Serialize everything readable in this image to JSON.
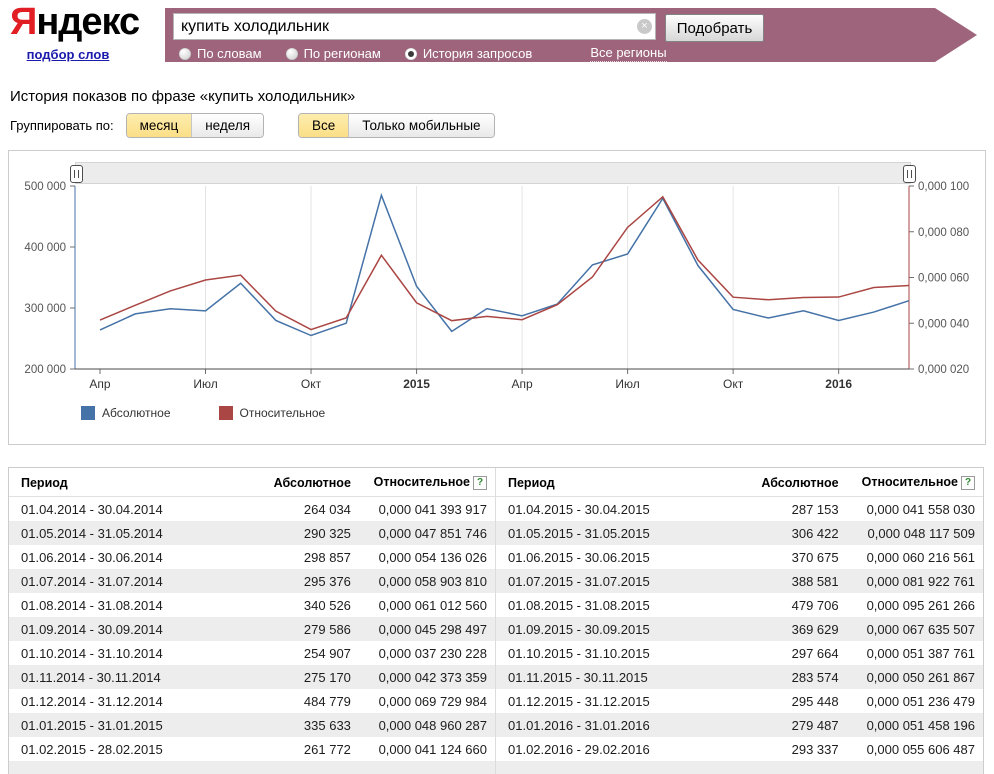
{
  "header": {
    "logo_first": "Я",
    "logo_rest": "ндекс",
    "logo_link": "подбор слов",
    "search_value": "купить холодильник",
    "submit_label": "Подобрать",
    "modes": [
      {
        "label": "По словам",
        "selected": false
      },
      {
        "label": "По регионам",
        "selected": false
      },
      {
        "label": "История запросов",
        "selected": true
      }
    ],
    "regions_link": "Все регионы"
  },
  "icons": {
    "clear": "×",
    "help": "?"
  },
  "page_title": "История показов по фразе «купить холодильник»",
  "controls": {
    "group_label": "Группировать по:",
    "grouping": [
      {
        "label": "месяц",
        "active": true
      },
      {
        "label": "неделя",
        "active": false
      }
    ],
    "device": [
      {
        "label": "Все",
        "active": true
      },
      {
        "label": "Только мобильные",
        "active": false
      }
    ]
  },
  "chart_data": {
    "type": "line",
    "categories": [
      "04.2014",
      "05.2014",
      "06.2014",
      "07.2014",
      "08.2014",
      "09.2014",
      "10.2014",
      "11.2014",
      "12.2014",
      "01.2015",
      "02.2015",
      "03.2015",
      "04.2015",
      "05.2015",
      "06.2015",
      "07.2015",
      "08.2015",
      "09.2015",
      "10.2015",
      "11.2015",
      "12.2015",
      "01.2016",
      "02.2016",
      "03.2016"
    ],
    "x_ticks": [
      {
        "label": "Апр",
        "month": 0,
        "bold": false
      },
      {
        "label": "Июл",
        "month": 3,
        "bold": false
      },
      {
        "label": "Окт",
        "month": 6,
        "bold": false
      },
      {
        "label": "2015",
        "month": 9,
        "bold": true
      },
      {
        "label": "Апр",
        "month": 12,
        "bold": false
      },
      {
        "label": "Июл",
        "month": 15,
        "bold": false
      },
      {
        "label": "Окт",
        "month": 18,
        "bold": false
      },
      {
        "label": "2016",
        "month": 21,
        "bold": true
      }
    ],
    "series": [
      {
        "name": "Абсолютное",
        "color": "#4572A7",
        "axis": "left",
        "values": [
          264034,
          290325,
          298857,
          295376,
          340526,
          279586,
          254907,
          275170,
          484779,
          335633,
          261772,
          299000,
          287153,
          306422,
          370675,
          388581,
          479706,
          369629,
          297664,
          283574,
          295448,
          279487,
          293337,
          312000
        ]
      },
      {
        "name": "Относительное",
        "color": "#AA4643",
        "axis": "right",
        "values": [
          41.393917,
          47.851746,
          54.136026,
          58.90381,
          61.01256,
          45.298497,
          37.230228,
          42.373359,
          69.729984,
          48.960287,
          41.12466,
          43.0,
          41.55803,
          48.117509,
          60.216561,
          81.922761,
          95.261266,
          67.635507,
          51.387761,
          50.261867,
          51.236479,
          51.458196,
          55.606487,
          56.5
        ]
      }
    ],
    "left_axis": {
      "ticks": [
        "500 000",
        "400 000",
        "300 000",
        "200 000"
      ],
      "range": [
        200000,
        500000
      ]
    },
    "right_axis": {
      "ticks": [
        "0,000 100",
        "0,000 080",
        "0,000 060",
        "0,000 040",
        "0,000 020"
      ],
      "range": [
        20,
        100
      ],
      "unit": "millionths"
    },
    "legend": [
      "Абсолютное",
      "Относительное"
    ],
    "grid": "vertical",
    "legend_position": "bottom-left"
  },
  "tables": {
    "headers": [
      "Период",
      "Абсолютное",
      "Относительное"
    ],
    "left_rows": [
      [
        "01.04.2014 - 30.04.2014",
        "264 034",
        "0,000 041 393 917"
      ],
      [
        "01.05.2014 - 31.05.2014",
        "290 325",
        "0,000 047 851 746"
      ],
      [
        "01.06.2014 - 30.06.2014",
        "298 857",
        "0,000 054 136 026"
      ],
      [
        "01.07.2014 - 31.07.2014",
        "295 376",
        "0,000 058 903 810"
      ],
      [
        "01.08.2014 - 31.08.2014",
        "340 526",
        "0,000 061 012 560"
      ],
      [
        "01.09.2014 - 30.09.2014",
        "279 586",
        "0,000 045 298 497"
      ],
      [
        "01.10.2014 - 31.10.2014",
        "254 907",
        "0,000 037 230 228"
      ],
      [
        "01.11.2014 - 30.11.2014",
        "275 170",
        "0,000 042 373 359"
      ],
      [
        "01.12.2014 - 31.12.2014",
        "484 779",
        "0,000 069 729 984"
      ],
      [
        "01.01.2015 - 31.01.2015",
        "335 633",
        "0,000 048 960 287"
      ],
      [
        "01.02.2015 - 28.02.2015",
        "261 772",
        "0,000 041 124 660"
      ]
    ],
    "right_rows": [
      [
        "01.04.2015 - 30.04.2015",
        "287 153",
        "0,000 041 558 030"
      ],
      [
        "01.05.2015 - 31.05.2015",
        "306 422",
        "0,000 048 117 509"
      ],
      [
        "01.06.2015 - 30.06.2015",
        "370 675",
        "0,000 060 216 561"
      ],
      [
        "01.07.2015 - 31.07.2015",
        "388 581",
        "0,000 081 922 761"
      ],
      [
        "01.08.2015 - 31.08.2015",
        "479 706",
        "0,000 095 261 266"
      ],
      [
        "01.09.2015 - 30.09.2015",
        "369 629",
        "0,000 067 635 507"
      ],
      [
        "01.10.2015 - 31.10.2015",
        "297 664",
        "0,000 051 387 761"
      ],
      [
        "01.11.2015 - 30.11.2015",
        "283 574",
        "0,000 050 261 867"
      ],
      [
        "01.12.2015 - 31.12.2015",
        "295 448",
        "0,000 051 236 479"
      ],
      [
        "01.01.2016 - 31.01.2016",
        "279 487",
        "0,000 051 458 196"
      ],
      [
        "01.02.2016 - 29.02.2016",
        "293 337",
        "0,000 055 606 487"
      ]
    ]
  }
}
